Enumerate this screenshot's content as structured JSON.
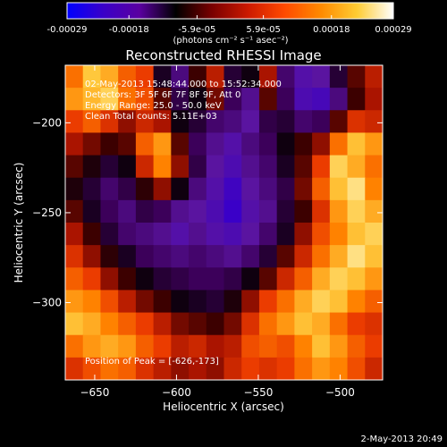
{
  "colorbar": {
    "tick_labels": [
      "-0.00029",
      "-0.00018",
      "-5.9e-05",
      "5.9e-05",
      "0.00018",
      "0.00029"
    ],
    "unit_label": "(photons cm⁻² s⁻¹ asec⁻²)",
    "range": [
      -0.00029,
      0.00029
    ],
    "colors": [
      "#0000ff",
      "#3a00c8",
      "#5a00a0",
      "#000000",
      "#7a0000",
      "#cc1a00",
      "#ff4a00",
      "#ff8a00",
      "#ffcc33",
      "#ffffff"
    ]
  },
  "annotations": {
    "time_range": "02-May-2013 15:48:44.000 to 15:52:34.000",
    "detectors": "Detectors: 3F 5F 6F 7F 8F 9F, Att 0",
    "energy_range": "Energy Range: 25.0 - 50.0 keV",
    "method": "Clean     Total counts: 5.11E+03",
    "peak": "Position of Peak = [-626,-173]"
  },
  "footer_date": "2-May-2013 20:49",
  "chart_data": {
    "type": "heatmap",
    "title": "Reconstructed RHESSI Image",
    "xlabel": "Heliocentric X (arcsec)",
    "ylabel": "Heliocentric Y (arcsec)",
    "xlim": [
      -668,
      -474
    ],
    "ylim": [
      -343,
      -168
    ],
    "x_ticks": [
      {
        "value": -650,
        "label": "−650"
      },
      {
        "value": -600,
        "label": "−600"
      },
      {
        "value": -550,
        "label": "−550"
      },
      {
        "value": -500,
        "label": "−500"
      }
    ],
    "y_ticks": [
      {
        "value": -200,
        "label": "−200"
      },
      {
        "value": -250,
        "label": "−250"
      },
      {
        "value": -300,
        "label": "−300"
      }
    ],
    "grid": false,
    "peak_position": [
      -626,
      -173
    ],
    "intensity_grid": [
      [
        0.6,
        0.82,
        0.75,
        0.55,
        0.45,
        -0.15,
        -0.4,
        0.05,
        0.3,
        -0.2,
        -0.1,
        0.25,
        -0.35,
        -0.55,
        -0.5,
        -0.2,
        0.1,
        0.3
      ],
      [
        0.7,
        0.78,
        0.85,
        0.6,
        0.5,
        0.1,
        -0.25,
        -0.1,
        0.15,
        -0.3,
        -0.45,
        0.1,
        -0.3,
        -0.6,
        -0.65,
        -0.4,
        0.05,
        0.25
      ],
      [
        0.45,
        0.55,
        0.4,
        0.2,
        0.35,
        0.25,
        -0.1,
        -0.2,
        -0.35,
        -0.4,
        -0.5,
        -0.25,
        -0.2,
        -0.35,
        -0.3,
        0.1,
        0.4,
        0.35
      ],
      [
        0.25,
        0.15,
        0.05,
        0.1,
        0.55,
        0.7,
        0.1,
        -0.3,
        -0.45,
        -0.55,
        -0.4,
        -0.3,
        -0.1,
        0.05,
        0.2,
        0.6,
        0.8,
        0.7
      ],
      [
        0.1,
        -0.05,
        -0.2,
        -0.1,
        0.35,
        0.65,
        0.2,
        -0.25,
        -0.5,
        -0.6,
        -0.45,
        -0.35,
        -0.15,
        0.1,
        0.45,
        0.85,
        0.75,
        0.6
      ],
      [
        -0.05,
        -0.2,
        -0.35,
        -0.25,
        0.0,
        0.2,
        -0.1,
        -0.4,
        -0.55,
        -0.7,
        -0.5,
        -0.4,
        -0.25,
        0.15,
        0.55,
        0.8,
        0.9,
        0.65
      ],
      [
        0.1,
        -0.15,
        -0.3,
        -0.4,
        -0.25,
        -0.3,
        -0.45,
        -0.5,
        -0.6,
        -0.75,
        -0.55,
        -0.45,
        -0.2,
        0.05,
        0.4,
        0.7,
        0.85,
        0.75
      ],
      [
        0.25,
        0.05,
        -0.2,
        -0.35,
        -0.4,
        -0.45,
        -0.55,
        -0.45,
        -0.55,
        -0.6,
        -0.5,
        -0.35,
        -0.15,
        0.2,
        0.5,
        0.65,
        0.8,
        0.85
      ],
      [
        0.4,
        0.2,
        0.0,
        -0.15,
        -0.3,
        -0.35,
        -0.4,
        -0.35,
        -0.4,
        -0.45,
        -0.35,
        -0.2,
        0.1,
        0.35,
        0.6,
        0.75,
        0.9,
        0.8
      ],
      [
        0.55,
        0.45,
        0.2,
        0.05,
        -0.1,
        -0.2,
        -0.25,
        -0.3,
        -0.3,
        -0.25,
        -0.1,
        0.1,
        0.35,
        0.55,
        0.75,
        0.85,
        0.8,
        0.7
      ],
      [
        0.7,
        0.65,
        0.5,
        0.3,
        0.15,
        0.05,
        -0.1,
        -0.15,
        -0.2,
        -0.05,
        0.2,
        0.45,
        0.6,
        0.75,
        0.85,
        0.8,
        0.65,
        0.55
      ],
      [
        0.8,
        0.75,
        0.65,
        0.55,
        0.45,
        0.3,
        0.15,
        0.1,
        0.05,
        0.15,
        0.4,
        0.6,
        0.7,
        0.8,
        0.75,
        0.6,
        0.45,
        0.4
      ],
      [
        0.6,
        0.7,
        0.75,
        0.7,
        0.55,
        0.45,
        0.3,
        0.35,
        0.25,
        0.3,
        0.5,
        0.55,
        0.5,
        0.65,
        0.8,
        0.7,
        0.55,
        0.45
      ],
      [
        0.4,
        0.5,
        0.6,
        0.55,
        0.4,
        0.3,
        0.2,
        0.25,
        0.2,
        0.35,
        0.45,
        0.4,
        0.45,
        0.6,
        0.7,
        0.65,
        0.5,
        0.35
      ]
    ]
  }
}
